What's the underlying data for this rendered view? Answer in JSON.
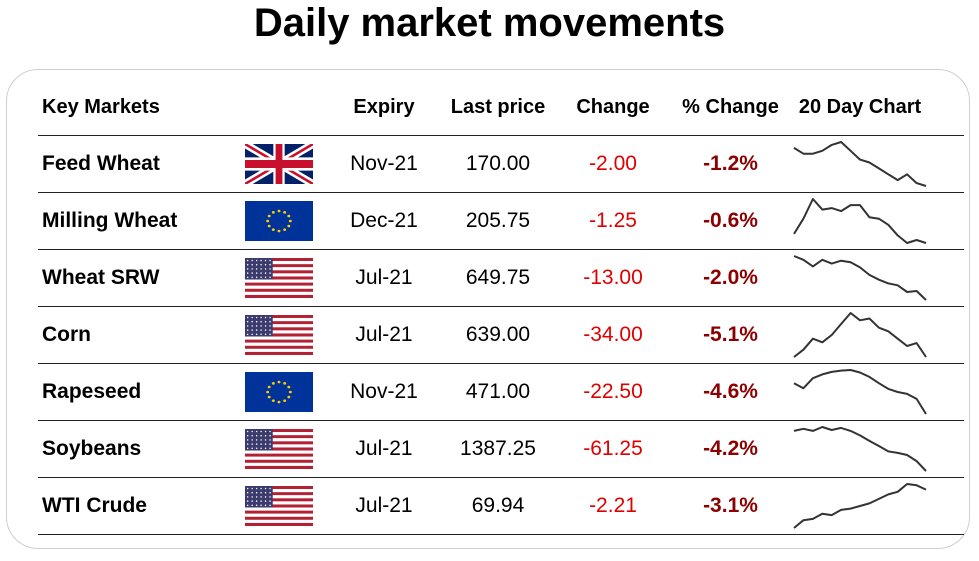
{
  "title": "Daily market movements",
  "headers": {
    "market": "Key Markets",
    "expiry": "Expiry",
    "last_price": "Last price",
    "change": "Change",
    "pct_change": "% Change",
    "chart": "20 Day Chart"
  },
  "colors": {
    "change": "#e00000",
    "pct_change": "#8b0000",
    "sparkline": "#333333"
  },
  "rows": [
    {
      "name": "Feed Wheat",
      "flag": "uk-flag-icon",
      "expiry": "Nov-21",
      "price": "170.00",
      "change": "-2.00",
      "pct": "-1.2%",
      "spark": [
        64,
        62,
        62,
        63,
        65,
        66,
        63,
        60,
        59,
        57,
        55,
        53,
        55,
        52,
        51
      ]
    },
    {
      "name": "Milling Wheat",
      "flag": "eu-flag-icon",
      "expiry": "Dec-21",
      "price": "205.75",
      "change": "-1.25",
      "pct": "-0.6%",
      "spark": [
        180,
        190,
        203,
        196,
        197,
        195,
        199,
        199,
        191,
        190,
        186,
        179,
        174,
        176,
        174
      ]
    },
    {
      "name": "Wheat SRW",
      "flag": "us-flag-icon",
      "expiry": "Jul-21",
      "price": "649.75",
      "change": "-13.00",
      "pct": "-2.0%",
      "spark": [
        730,
        722,
        708,
        722,
        714,
        720,
        717,
        706,
        690,
        680,
        672,
        668,
        654,
        656,
        637
      ]
    },
    {
      "name": "Corn",
      "flag": "us-flag-icon",
      "expiry": "Jul-21",
      "price": "639.00",
      "change": "-34.00",
      "pct": "-5.1%",
      "spark": [
        640,
        660,
        690,
        680,
        700,
        730,
        760,
        740,
        745,
        720,
        710,
        690,
        670,
        678,
        640
      ]
    },
    {
      "name": "Rapeseed",
      "flag": "eu-flag-icon",
      "expiry": "Nov-21",
      "price": "471.00",
      "change": "-22.50",
      "pct": "-4.6%",
      "spark": [
        520,
        512,
        528,
        534,
        538,
        540,
        541,
        537,
        530,
        520,
        511,
        506,
        503,
        495,
        471
      ]
    },
    {
      "name": "Soybeans",
      "flag": "us-flag-icon",
      "expiry": "Jul-21",
      "price": "1387.25",
      "change": "-61.25",
      "pct": "-4.2%",
      "spark": [
        1520,
        1527,
        1520,
        1533,
        1523,
        1530,
        1520,
        1505,
        1487,
        1470,
        1452,
        1447,
        1440,
        1420,
        1387
      ]
    },
    {
      "name": "WTI Crude",
      "flag": "us-flag-icon",
      "expiry": "Jul-21",
      "price": "69.94",
      "change": "-2.21",
      "pct": "-3.1%",
      "spark": [
        64.0,
        65.2,
        65.4,
        66.2,
        66.0,
        66.8,
        67.0,
        67.4,
        67.8,
        68.5,
        69.2,
        69.6,
        70.8,
        70.6,
        69.94
      ]
    }
  ]
}
